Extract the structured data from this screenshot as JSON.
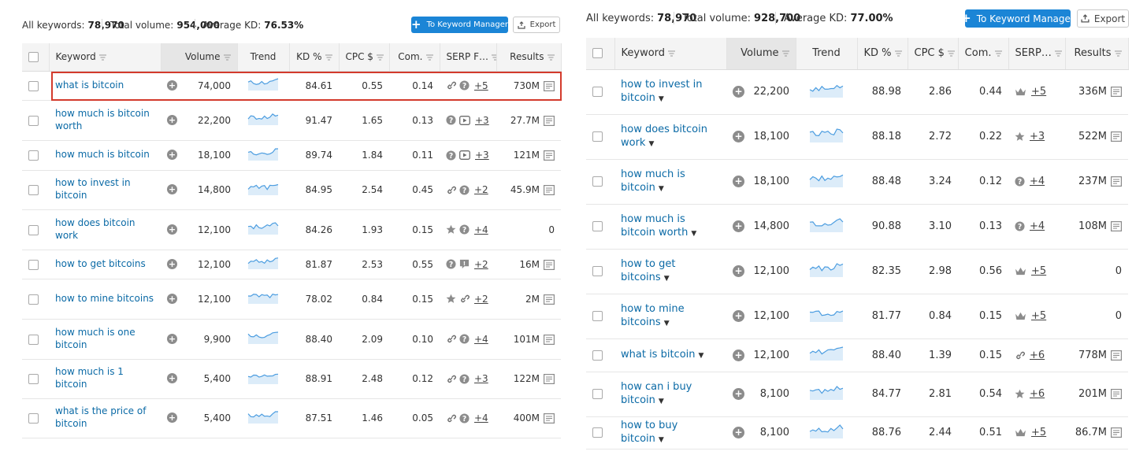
{
  "left": {
    "stats": {
      "all_label": "All keywords:",
      "all_value": "78,970",
      "volume_label": "Total volume:",
      "volume_value": "954,000",
      "kd_label": "Average KD:",
      "kd_value": "76.53%"
    },
    "to_km_label": "To Keyword Manager",
    "export_label": "Export",
    "columns": {
      "keyword": "Keyword",
      "volume": "Volume",
      "trend": "Trend",
      "kd": "KD %",
      "cpc": "CPC $",
      "com": "Com.",
      "serp": "SERP F…",
      "results": "Results"
    },
    "rows": [
      {
        "keyword": "what is bitcoin",
        "volume": "74,000",
        "kd": "84.61",
        "cpc": "0.55",
        "com": "0.14",
        "serp": [
          "link",
          "question"
        ],
        "extra": "+5",
        "results": "730M",
        "has_icon": true
      },
      {
        "keyword": "how much is bitcoin worth",
        "volume": "22,200",
        "kd": "91.47",
        "cpc": "1.65",
        "com": "0.13",
        "serp": [
          "question",
          "video"
        ],
        "extra": "+3",
        "results": "27.7M",
        "has_icon": true
      },
      {
        "keyword": "how much is bitcoin",
        "volume": "18,100",
        "kd": "89.74",
        "cpc": "1.84",
        "com": "0.11",
        "serp": [
          "question",
          "video"
        ],
        "extra": "+3",
        "results": "121M",
        "has_icon": true
      },
      {
        "keyword": "how to invest in bitcoin",
        "volume": "14,800",
        "kd": "84.95",
        "cpc": "2.54",
        "com": "0.45",
        "serp": [
          "link",
          "question"
        ],
        "extra": "+2",
        "results": "45.9M",
        "has_icon": true
      },
      {
        "keyword": "how does bitcoin work",
        "volume": "12,100",
        "kd": "84.26",
        "cpc": "1.93",
        "com": "0.15",
        "serp": [
          "star",
          "question"
        ],
        "extra": "+4",
        "results": "0",
        "has_icon": false
      },
      {
        "keyword": "how to get bitcoins",
        "volume": "12,100",
        "kd": "81.87",
        "cpc": "2.53",
        "com": "0.55",
        "serp": [
          "question",
          "quote"
        ],
        "extra": "+2",
        "results": "16M",
        "has_icon": true
      },
      {
        "keyword": "how to mine bitcoins",
        "volume": "12,100",
        "kd": "78.02",
        "cpc": "0.84",
        "com": "0.15",
        "serp": [
          "star",
          "link"
        ],
        "extra": "+2",
        "results": "2M",
        "has_icon": true
      },
      {
        "keyword": "how much is one bitcoin",
        "volume": "9,900",
        "kd": "88.40",
        "cpc": "2.09",
        "com": "0.10",
        "serp": [
          "link",
          "question"
        ],
        "extra": "+4",
        "results": "101M",
        "has_icon": true
      },
      {
        "keyword": "how much is 1 bitcoin",
        "volume": "5,400",
        "kd": "88.91",
        "cpc": "2.48",
        "com": "0.12",
        "serp": [
          "link",
          "question"
        ],
        "extra": "+3",
        "results": "122M",
        "has_icon": true
      },
      {
        "keyword": "what is the price of bitcoin",
        "volume": "5,400",
        "kd": "87.51",
        "cpc": "1.46",
        "com": "0.05",
        "serp": [
          "link",
          "question"
        ],
        "extra": "+4",
        "results": "400M",
        "has_icon": true
      }
    ]
  },
  "right": {
    "stats": {
      "all_label": "All keywords:",
      "all_value": "78,970",
      "volume_label": "Total volume:",
      "volume_value": "928,700",
      "kd_label": "Average KD:",
      "kd_value": "77.00%"
    },
    "to_km_label": "To Keyword Manager",
    "export_label": "Export",
    "columns": {
      "keyword": "Keyword",
      "volume": "Volume",
      "trend": "Trend",
      "kd": "KD %",
      "cpc": "CPC $",
      "com": "Com.",
      "serp": "SERP…",
      "results": "Results"
    },
    "rows": [
      {
        "keyword": "how to invest in bitcoin",
        "volume": "22,200",
        "kd": "88.98",
        "cpc": "2.86",
        "com": "0.44",
        "serp": [
          "crown"
        ],
        "extra": "+5",
        "results": "336M",
        "has_icon": true
      },
      {
        "keyword": "how does bitcoin work",
        "volume": "18,100",
        "kd": "88.18",
        "cpc": "2.72",
        "com": "0.22",
        "serp": [
          "star"
        ],
        "extra": "+3",
        "results": "522M",
        "has_icon": true
      },
      {
        "keyword": "how much is bitcoin",
        "volume": "18,100",
        "kd": "88.48",
        "cpc": "3.24",
        "com": "0.12",
        "serp": [
          "question"
        ],
        "extra": "+4",
        "results": "237M",
        "has_icon": true
      },
      {
        "keyword": "how much is bitcoin worth",
        "volume": "14,800",
        "kd": "90.88",
        "cpc": "3.10",
        "com": "0.13",
        "serp": [
          "question"
        ],
        "extra": "+4",
        "results": "108M",
        "has_icon": true
      },
      {
        "keyword": "how to get bitcoins",
        "volume": "12,100",
        "kd": "82.35",
        "cpc": "2.98",
        "com": "0.56",
        "serp": [
          "crown"
        ],
        "extra": "+5",
        "results": "0",
        "has_icon": false
      },
      {
        "keyword": "how to mine bitcoins",
        "volume": "12,100",
        "kd": "81.77",
        "cpc": "0.84",
        "com": "0.15",
        "serp": [
          "crown"
        ],
        "extra": "+5",
        "results": "0",
        "has_icon": false
      },
      {
        "keyword": "what is bitcoin",
        "volume": "12,100",
        "kd": "88.40",
        "cpc": "1.39",
        "com": "0.15",
        "serp": [
          "link"
        ],
        "extra": "+6",
        "results": "778M",
        "has_icon": true
      },
      {
        "keyword": "how can i buy bitcoin",
        "volume": "8,100",
        "kd": "84.77",
        "cpc": "2.81",
        "com": "0.54",
        "serp": [
          "star"
        ],
        "extra": "+6",
        "results": "201M",
        "has_icon": true
      },
      {
        "keyword": "how to buy bitcoin",
        "volume": "8,100",
        "kd": "88.76",
        "cpc": "2.44",
        "com": "0.51",
        "serp": [
          "crown"
        ],
        "extra": "+5",
        "results": "86.7M",
        "has_icon": true
      }
    ]
  }
}
